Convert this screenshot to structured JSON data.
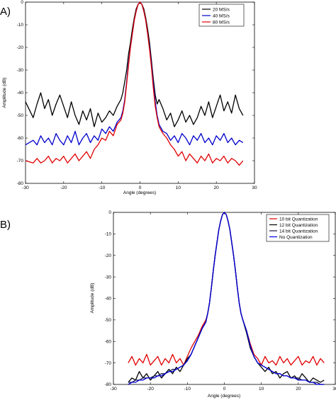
{
  "chart_data": [
    {
      "panel_label": "A)",
      "type": "line",
      "xlabel": "Angle (degrees)",
      "ylabel": "Amplitude (dB)",
      "xlim": [
        -30,
        30
      ],
      "ylim": [
        -80,
        0
      ],
      "xticks": [
        -30,
        -20,
        -10,
        0,
        10,
        20,
        30
      ],
      "yticks": [
        0,
        -10,
        -20,
        -30,
        -40,
        -50,
        -60,
        -70,
        -80
      ],
      "legend_position": "top-right",
      "grid": false,
      "series": [
        {
          "name": "20 MS/s",
          "color": "#000000",
          "x": [
            -30,
            -28,
            -27,
            -26,
            -25,
            -24,
            -23,
            -22,
            -21,
            -20,
            -19,
            -18,
            -17,
            -16,
            -15,
            -14,
            -13,
            -12,
            -11,
            -10,
            -9,
            -8,
            -7,
            -6,
            -5,
            -4.5,
            -4,
            -3.5,
            -3,
            -2.5,
            -2,
            -1.5,
            -1,
            -0.5,
            0,
            0.5,
            1,
            1.5,
            2,
            2.5,
            3,
            3.5,
            4,
            4.5,
            5,
            6,
            7,
            8,
            9,
            10,
            11,
            12,
            13,
            14,
            15,
            16,
            17,
            18,
            19,
            20,
            21,
            22,
            23,
            24,
            25,
            26,
            27
          ],
          "y": [
            -44,
            -51,
            -45,
            -40,
            -47,
            -43,
            -50,
            -45,
            -41,
            -46,
            -51,
            -44,
            -50,
            -54,
            -48,
            -52,
            -47,
            -55,
            -49,
            -53,
            -51,
            -48,
            -50,
            -46,
            -43,
            -40,
            -35,
            -30,
            -23,
            -18,
            -12,
            -7,
            -3,
            -1,
            0,
            -1,
            -3,
            -7,
            -12,
            -18,
            -26,
            -34,
            -41,
            -45,
            -43,
            -47,
            -52,
            -49,
            -55,
            -52,
            -48,
            -53,
            -50,
            -54,
            -51,
            -46,
            -50,
            -44,
            -51,
            -46,
            -41,
            -48,
            -44,
            -49,
            -41,
            -47,
            -50
          ]
        },
        {
          "name": "40 MS/s",
          "color": "#0000cc",
          "x": [
            -30,
            -28,
            -27,
            -26,
            -25,
            -24,
            -23,
            -22,
            -21,
            -20,
            -19,
            -18,
            -17,
            -16,
            -15,
            -14,
            -13,
            -12,
            -11,
            -10,
            -9,
            -8,
            -7,
            -6,
            -5,
            -4.5,
            -4,
            -3.5,
            -3,
            -2.5,
            -2,
            -1.5,
            -1,
            -0.5,
            0,
            0.5,
            1,
            1.5,
            2,
            2.5,
            3,
            3.5,
            4,
            4.5,
            5,
            6,
            7,
            8,
            9,
            10,
            11,
            12,
            13,
            14,
            15,
            16,
            17,
            18,
            19,
            20,
            21,
            22,
            23,
            24,
            25,
            26,
            27
          ],
          "y": [
            -63,
            -61,
            -63,
            -59,
            -62,
            -60,
            -63,
            -58,
            -61,
            -63,
            -59,
            -62,
            -57,
            -63,
            -60,
            -58,
            -62,
            -59,
            -61,
            -56,
            -58,
            -55,
            -57,
            -53,
            -51,
            -48,
            -43,
            -35,
            -27,
            -20,
            -14,
            -8,
            -4,
            -1,
            0,
            -1,
            -4,
            -8,
            -14,
            -20,
            -28,
            -36,
            -44,
            -50,
            -54,
            -57,
            -58,
            -61,
            -59,
            -62,
            -58,
            -60,
            -63,
            -59,
            -61,
            -58,
            -62,
            -60,
            -63,
            -59,
            -61,
            -58,
            -62,
            -60,
            -63,
            -61,
            -62
          ]
        },
        {
          "name": "80 MS/s",
          "color": "#e00000",
          "x": [
            -30,
            -28,
            -27,
            -26,
            -25,
            -24,
            -23,
            -22,
            -21,
            -20,
            -19,
            -18,
            -17,
            -16,
            -15,
            -14,
            -13,
            -12,
            -11,
            -10,
            -9,
            -8,
            -7,
            -6,
            -5,
            -4.5,
            -4,
            -3.5,
            -3,
            -2.5,
            -2,
            -1.5,
            -1,
            -0.5,
            0,
            0.5,
            1,
            1.5,
            2,
            2.5,
            3,
            3.5,
            4,
            4.5,
            5,
            6,
            7,
            8,
            9,
            10,
            11,
            12,
            13,
            14,
            15,
            16,
            17,
            18,
            19,
            20,
            21,
            22,
            23,
            24,
            25,
            26,
            27
          ],
          "y": [
            -70,
            -71,
            -69,
            -71,
            -70,
            -68,
            -71,
            -69,
            -70,
            -68,
            -71,
            -69,
            -67,
            -70,
            -68,
            -66,
            -69,
            -65,
            -63,
            -60,
            -61,
            -57,
            -59,
            -54,
            -52,
            -49,
            -44,
            -36,
            -28,
            -20,
            -14,
            -8,
            -4,
            -1,
            0,
            -1,
            -4,
            -8,
            -14,
            -21,
            -29,
            -38,
            -46,
            -51,
            -55,
            -58,
            -60,
            -63,
            -65,
            -68,
            -66,
            -70,
            -67,
            -69,
            -71,
            -68,
            -70,
            -67,
            -71,
            -69,
            -70,
            -68,
            -71,
            -69,
            -70,
            -72,
            -70
          ]
        }
      ]
    },
    {
      "panel_label": "B)",
      "type": "line",
      "xlabel": "Angle (degrees)",
      "ylabel": "Amplitude (dB)",
      "xlim": [
        -30,
        30
      ],
      "ylim": [
        -80,
        0
      ],
      "xticks": [
        -30,
        -20,
        -10,
        0,
        10,
        20,
        30
      ],
      "yticks": [
        0,
        -10,
        -20,
        -30,
        -40,
        -50,
        -60,
        -70,
        -80
      ],
      "legend_position": "top-right",
      "grid": false,
      "series": [
        {
          "name": "10 bit Quantization",
          "color": "#e00000",
          "x": [
            -26,
            -25,
            -24,
            -23,
            -22,
            -21,
            -20,
            -19,
            -18,
            -17,
            -16,
            -15,
            -14,
            -13,
            -12,
            -11,
            -10,
            -9,
            -8,
            -7,
            -6,
            -5,
            -4.5,
            -4,
            -3.5,
            -3,
            -2.5,
            -2,
            -1.5,
            -1,
            -0.5,
            0,
            0.5,
            1,
            1.5,
            2,
            2.5,
            3,
            3.5,
            4,
            4.5,
            5,
            6,
            7,
            8,
            9,
            10,
            11,
            12,
            13,
            14,
            15,
            16,
            17,
            18,
            19,
            20,
            21,
            22,
            23,
            24,
            25,
            26,
            27
          ],
          "y": [
            -70,
            -67,
            -71,
            -68,
            -70,
            -66,
            -71,
            -69,
            -67,
            -71,
            -68,
            -70,
            -66,
            -70,
            -68,
            -71,
            -67,
            -63,
            -60,
            -57,
            -53,
            -50,
            -47,
            -42,
            -35,
            -27,
            -20,
            -14,
            -8,
            -4,
            -1,
            0,
            -1,
            -4,
            -8,
            -14,
            -20,
            -27,
            -35,
            -42,
            -47,
            -50,
            -55,
            -61,
            -66,
            -68,
            -71,
            -67,
            -70,
            -69,
            -71,
            -67,
            -70,
            -68,
            -71,
            -69,
            -67,
            -71,
            -69,
            -70,
            -67,
            -71,
            -68,
            -70
          ]
        },
        {
          "name": "12 bit Quantization",
          "color": "#000000",
          "x": [
            -26,
            -25,
            -24,
            -23,
            -22,
            -21,
            -20,
            -19,
            -18,
            -17,
            -16,
            -15,
            -14,
            -13,
            -12,
            -11,
            -10,
            -9,
            -8,
            -7,
            -6,
            -5,
            -4.5,
            -4,
            -3.5,
            -3,
            -2.5,
            -2,
            -1.5,
            -1,
            -0.5,
            0,
            0.5,
            1,
            1.5,
            2,
            2.5,
            3,
            3.5,
            4,
            4.5,
            5,
            6,
            7,
            8,
            9,
            10,
            11,
            12,
            13,
            14,
            15,
            16,
            17,
            18,
            19,
            20,
            21,
            22,
            23,
            24,
            25,
            26,
            27
          ],
          "y": [
            -79,
            -77,
            -78,
            -74,
            -77,
            -75,
            -78,
            -76,
            -74,
            -77,
            -75,
            -73,
            -75,
            -72,
            -74,
            -71,
            -68,
            -66,
            -62,
            -58,
            -54,
            -51,
            -47,
            -42,
            -35,
            -27,
            -20,
            -14,
            -8,
            -4,
            -1,
            0,
            -1,
            -4,
            -8,
            -14,
            -20,
            -27,
            -35,
            -42,
            -47,
            -50,
            -56,
            -63,
            -67,
            -70,
            -72,
            -74,
            -72,
            -75,
            -74,
            -77,
            -75,
            -74,
            -77,
            -76,
            -78,
            -75,
            -77,
            -79,
            -77,
            -78,
            -79,
            -78
          ]
        },
        {
          "name": "14 bit Quantization",
          "color": "#1a1a4a",
          "x": [
            -26,
            -25,
            -24,
            -23,
            -22,
            -21,
            -20,
            -19,
            -18,
            -17,
            -16,
            -15,
            -14,
            -13,
            -12,
            -11,
            -10,
            -9,
            -8,
            -7,
            -6,
            -5,
            -4.5,
            -4,
            -3.5,
            -3,
            -2.5,
            -2,
            -1.5,
            -1,
            -0.5,
            0,
            0.5,
            1,
            1.5,
            2,
            2.5,
            3,
            3.5,
            4,
            4.5,
            5,
            6,
            7,
            8,
            9,
            10,
            11,
            12,
            13,
            14,
            15,
            16,
            17,
            18,
            19,
            20,
            21,
            22,
            23,
            24,
            25,
            26,
            27
          ],
          "y": [
            -79,
            -79,
            -78,
            -78,
            -77,
            -77,
            -77,
            -76,
            -76,
            -75,
            -75,
            -74,
            -73,
            -73,
            -72,
            -71,
            -69,
            -66,
            -62,
            -58,
            -54,
            -51,
            -47,
            -42,
            -35,
            -27,
            -20,
            -14,
            -8,
            -4,
            -1,
            0,
            -1,
            -4,
            -8,
            -14,
            -20,
            -27,
            -35,
            -42,
            -47,
            -50,
            -55,
            -62,
            -67,
            -70,
            -71,
            -72,
            -73,
            -74,
            -75,
            -75,
            -76,
            -76,
            -77,
            -77,
            -77,
            -78,
            -78,
            -79,
            -79,
            -79,
            -80,
            -80
          ]
        },
        {
          "name": "No Quantization",
          "color": "#0000dd",
          "x": [
            -26,
            -25,
            -24,
            -23,
            -22,
            -21,
            -20,
            -19,
            -18,
            -17,
            -16,
            -15,
            -14,
            -13,
            -12,
            -11,
            -10,
            -9,
            -8,
            -7,
            -6,
            -5,
            -4.5,
            -4,
            -3.5,
            -3,
            -2.5,
            -2,
            -1.5,
            -1,
            -0.5,
            0,
            0.5,
            1,
            1.5,
            2,
            2.5,
            3,
            3.5,
            4,
            4.5,
            5,
            6,
            7,
            8,
            9,
            10,
            11,
            12,
            13,
            14,
            15,
            16,
            17,
            18,
            19,
            20,
            21,
            22,
            23,
            24,
            25,
            26,
            27
          ],
          "y": [
            -80,
            -79,
            -79,
            -78,
            -78,
            -77,
            -77,
            -77,
            -76,
            -76,
            -75,
            -74,
            -74,
            -73,
            -72,
            -71,
            -69,
            -66,
            -62,
            -58,
            -54,
            -51,
            -47,
            -42,
            -35,
            -27,
            -20,
            -14,
            -8,
            -4,
            -1,
            0,
            -1,
            -4,
            -8,
            -14,
            -20,
            -27,
            -35,
            -42,
            -47,
            -50,
            -55,
            -62,
            -67,
            -70,
            -71,
            -72,
            -73,
            -74,
            -75,
            -75,
            -76,
            -76,
            -77,
            -77,
            -78,
            -78,
            -78,
            -79,
            -79,
            -80,
            -80,
            -80
          ]
        }
      ]
    }
  ]
}
